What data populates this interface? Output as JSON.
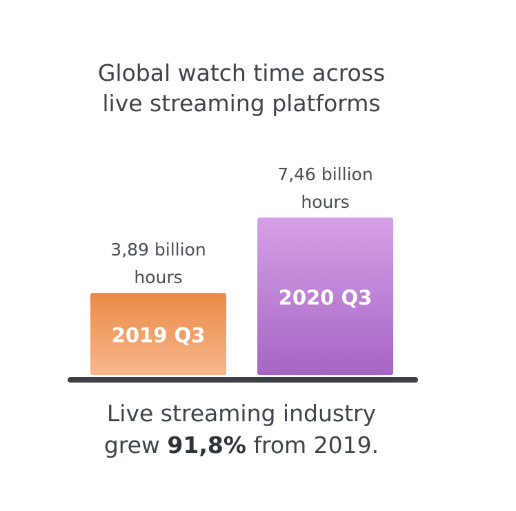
{
  "chart_data": {
    "type": "bar",
    "title": "Global watch time across live streaming platforms",
    "title_lines": [
      "Global watch time across",
      "live streaming platforms"
    ],
    "categories": [
      "2019 Q3",
      "2020 Q3"
    ],
    "values": [
      3.89,
      7.46
    ],
    "value_labels": [
      [
        "3,89 billion",
        "hours"
      ],
      [
        "7,46 billion",
        "hours"
      ]
    ],
    "unit": "billion hours",
    "colors": [
      {
        "top": "#ea8a45",
        "bottom": "#f7b78e"
      },
      {
        "top": "#d6a0e6",
        "bottom": "#a565c4"
      }
    ],
    "baseline_color": "#3c4046",
    "xlabel": "",
    "ylabel": "",
    "ylim": [
      0,
      7.46
    ],
    "grid": false
  },
  "footer": {
    "line1": "Live streaming industry",
    "line2_pre": "grew ",
    "line2_bold": "91,8%",
    "line2_post": " from 2019."
  }
}
